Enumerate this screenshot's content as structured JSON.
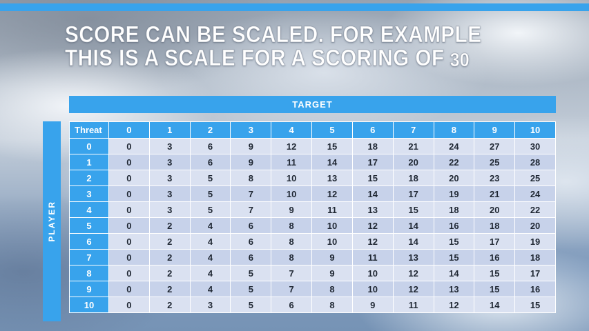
{
  "title": {
    "line1": "SCORE CAN BE SCALED. FOR EXAMPLE",
    "line2_text": "THIS IS A SCALE FOR A SCORING OF",
    "line2_number": "30"
  },
  "table": {
    "target_label": "TARGET",
    "player_label": "PLAYER",
    "corner_label": "Threat",
    "col_headers": [
      "0",
      "1",
      "2",
      "3",
      "4",
      "5",
      "6",
      "7",
      "8",
      "9",
      "10"
    ],
    "rows": [
      {
        "threat": "0",
        "values": [
          0,
          3,
          6,
          9,
          12,
          15,
          18,
          21,
          24,
          27,
          30
        ]
      },
      {
        "threat": "1",
        "values": [
          0,
          3,
          6,
          9,
          11,
          14,
          17,
          20,
          22,
          25,
          28
        ]
      },
      {
        "threat": "2",
        "values": [
          0,
          3,
          5,
          8,
          10,
          13,
          15,
          18,
          20,
          23,
          25
        ]
      },
      {
        "threat": "3",
        "values": [
          0,
          3,
          5,
          7,
          10,
          12,
          14,
          17,
          19,
          21,
          24
        ]
      },
      {
        "threat": "4",
        "values": [
          0,
          3,
          5,
          7,
          9,
          11,
          13,
          15,
          18,
          20,
          22
        ]
      },
      {
        "threat": "5",
        "values": [
          0,
          2,
          4,
          6,
          8,
          10,
          12,
          14,
          16,
          18,
          20
        ]
      },
      {
        "threat": "6",
        "values": [
          0,
          2,
          4,
          6,
          8,
          10,
          12,
          14,
          15,
          17,
          19
        ]
      },
      {
        "threat": "7",
        "values": [
          0,
          2,
          4,
          6,
          8,
          9,
          11,
          13,
          15,
          16,
          18
        ]
      },
      {
        "threat": "8",
        "values": [
          0,
          2,
          4,
          5,
          7,
          9,
          10,
          12,
          14,
          15,
          17
        ]
      },
      {
        "threat": "9",
        "values": [
          0,
          2,
          4,
          5,
          7,
          8,
          10,
          12,
          13,
          15,
          16
        ]
      },
      {
        "threat": "10",
        "values": [
          0,
          2,
          3,
          5,
          6,
          8,
          9,
          11,
          12,
          14,
          15
        ]
      }
    ]
  },
  "colors": {
    "accent_blue": "#38A3EC",
    "band_light": "#DAE1F1",
    "band_dark": "#C7D2EA",
    "cell_text": "#1F2733",
    "title_text": "#FFFFFF"
  }
}
